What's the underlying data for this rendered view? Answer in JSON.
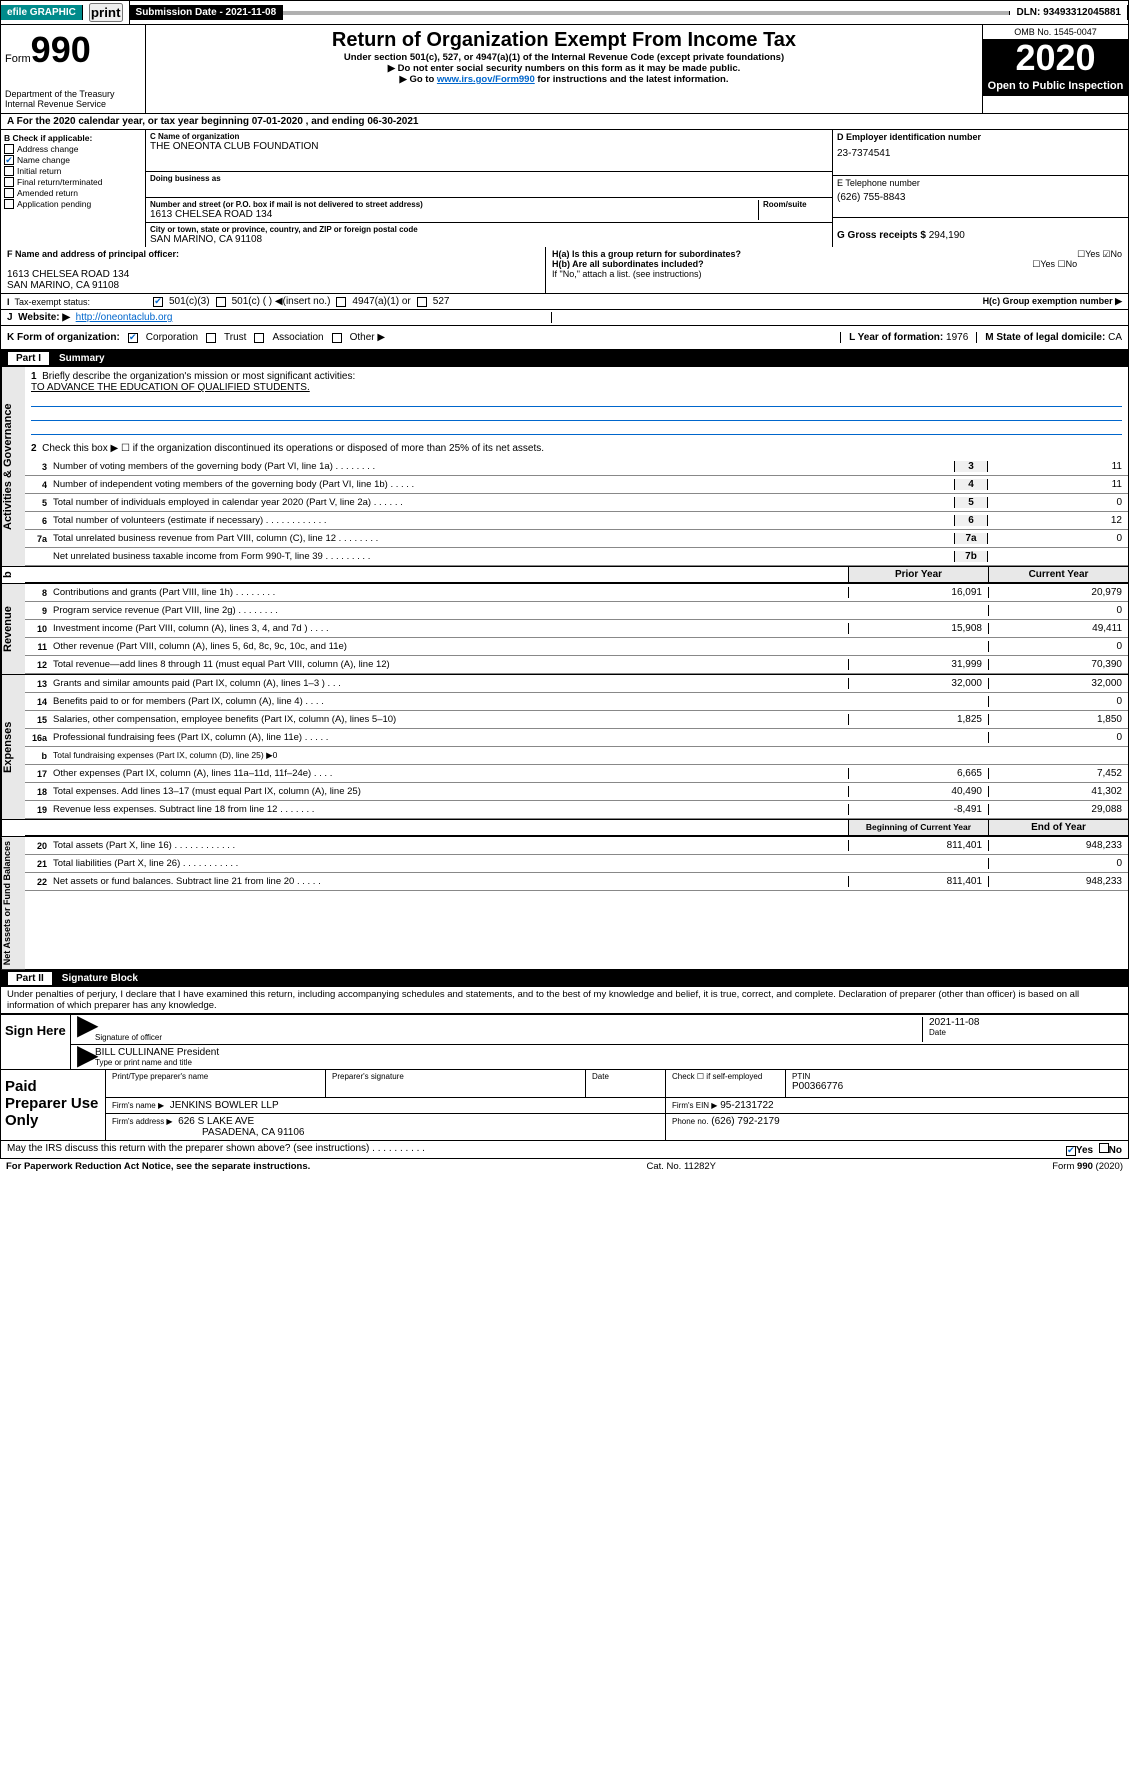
{
  "topbar": {
    "efile": "efile GRAPHIC",
    "print": "print",
    "submission": "Submission Date - 2021-11-08",
    "dln": "DLN: 93493312045881"
  },
  "header": {
    "form_label": "Form",
    "form_num": "990",
    "dept": "Department of the Treasury\nInternal Revenue Service",
    "title": "Return of Organization Exempt From Income Tax",
    "sub1": "Under section 501(c), 527, or 4947(a)(1) of the Internal Revenue Code (except private foundations)",
    "sub2": "▶ Do not enter social security numbers on this form as it may be made public.",
    "sub3_pre": "▶ Go to ",
    "sub3_link": "www.irs.gov/Form990",
    "sub3_post": " for instructions and the latest information.",
    "omb": "OMB No. 1545-0047",
    "year": "2020",
    "open": "Open to Public Inspection"
  },
  "taxyear": "A For the 2020 calendar year, or tax year beginning 07-01-2020    , and ending 06-30-2021",
  "boxB": {
    "label": "B Check if applicable:",
    "items": [
      "Address change",
      "Name change",
      "Initial return",
      "Final return/terminated",
      "Amended return",
      "Application pending"
    ],
    "checked_idx": 1
  },
  "boxC": {
    "name_label": "C Name of organization",
    "name": "THE ONEONTA CLUB FOUNDATION",
    "dba_label": "Doing business as",
    "addr_label": "Number and street (or P.O. box if mail is not delivered to street address)",
    "room_label": "Room/suite",
    "addr": "1613 CHELSEA ROAD 134",
    "city_label": "City or town, state or province, country, and ZIP or foreign postal code",
    "city": "SAN MARINO, CA  91108"
  },
  "boxD": {
    "label": "D Employer identification number",
    "val": "23-7374541"
  },
  "boxE": {
    "label": "E Telephone number",
    "val": "(626) 755-8843"
  },
  "boxG": {
    "label": "G Gross receipts $",
    "val": "294,190"
  },
  "boxF": {
    "label": "F  Name and address of principal officer:",
    "addr1": "1613 CHELSEA ROAD 134",
    "addr2": "SAN MARINO, CA  91108"
  },
  "boxH": {
    "ha": "H(a)  Is this a group return for subordinates?",
    "hb": "H(b)  Are all subordinates included?",
    "hb_note": "If \"No,\" attach a list. (see instructions)",
    "hc": "H(c)  Group exemption number ▶",
    "yes": "Yes",
    "no": "No"
  },
  "boxI": {
    "label": "Tax-exempt status:",
    "opts": [
      "501(c)(3)",
      "501(c) (  ) ◀(insert no.)",
      "4947(a)(1) or",
      "527"
    ]
  },
  "boxJ": {
    "label": "J",
    "text": "Website: ▶",
    "val": "http://oneontaclub.org"
  },
  "boxK": {
    "label": "K Form of organization:",
    "opts": [
      "Corporation",
      "Trust",
      "Association",
      "Other ▶"
    ]
  },
  "boxL": {
    "label": "L Year of formation:",
    "val": "1976"
  },
  "boxM": {
    "label": "M State of legal domicile:",
    "val": "CA"
  },
  "part1": {
    "tag": "Part I",
    "title": "Summary"
  },
  "governance": {
    "side": "Activities & Governance",
    "l1": "Briefly describe the organization's mission or most significant activities:",
    "l1val": "TO ADVANCE THE EDUCATION OF QUALIFIED STUDENTS.",
    "l2": "Check this box ▶ ☐  if the organization discontinued its operations or disposed of more than 25% of its net assets.",
    "rows": [
      {
        "n": "3",
        "t": "Number of voting members of the governing body (Part VI, line 1a)   .    .    .    .    .    .    .    .",
        "lbl": "3",
        "v": "11"
      },
      {
        "n": "4",
        "t": "Number of independent voting members of the governing body (Part VI, line 1b)   .    .    .    .    .",
        "lbl": "4",
        "v": "11"
      },
      {
        "n": "5",
        "t": "Total number of individuals employed in calendar year 2020 (Part V, line 2a)   .    .    .    .    .    .",
        "lbl": "5",
        "v": "0"
      },
      {
        "n": "6",
        "t": "Total number of volunteers (estimate if necessary)   .    .    .    .    .    .    .    .    .    .    .    .",
        "lbl": "6",
        "v": "12"
      },
      {
        "n": "7a",
        "t": "Total unrelated business revenue from Part VIII, column (C), line 12   .    .    .    .    .    .    .    .",
        "lbl": "7a",
        "v": "0"
      },
      {
        "n": "",
        "t": "Net unrelated business taxable income from Form 990-T, line 39   .    .    .    .    .    .    .    .    .",
        "lbl": "7b",
        "v": ""
      }
    ]
  },
  "twocol_head": {
    "prior": "Prior Year",
    "current": "Current Year"
  },
  "revenue": {
    "side": "Revenue",
    "rows": [
      {
        "n": "8",
        "t": "Contributions and grants (Part VIII, line 1h)   .    .    .    .    .    .    .    .",
        "p": "16,091",
        "c": "20,979"
      },
      {
        "n": "9",
        "t": "Program service revenue (Part VIII, line 2g)   .    .    .    .    .    .    .    .",
        "p": "",
        "c": "0"
      },
      {
        "n": "10",
        "t": "Investment income (Part VIII, column (A), lines 3, 4, and 7d )   .    .    .    .",
        "p": "15,908",
        "c": "49,411"
      },
      {
        "n": "11",
        "t": "Other revenue (Part VIII, column (A), lines 5, 6d, 8c, 9c, 10c, and 11e)",
        "p": "",
        "c": "0"
      },
      {
        "n": "12",
        "t": "Total revenue—add lines 8 through 11 (must equal Part VIII, column (A), line 12)",
        "p": "31,999",
        "c": "70,390"
      }
    ]
  },
  "expenses": {
    "side": "Expenses",
    "rows": [
      {
        "n": "13",
        "t": "Grants and similar amounts paid (Part IX, column (A), lines 1–3 )   .    .    .",
        "p": "32,000",
        "c": "32,000"
      },
      {
        "n": "14",
        "t": "Benefits paid to or for members (Part IX, column (A), line 4)   .    .    .    .",
        "p": "",
        "c": "0"
      },
      {
        "n": "15",
        "t": "Salaries, other compensation, employee benefits (Part IX, column (A), lines 5–10)",
        "p": "1,825",
        "c": "1,850"
      },
      {
        "n": "16a",
        "t": "Professional fundraising fees (Part IX, column (A), line 11e)   .    .    .    .    .",
        "p": "",
        "c": "0"
      },
      {
        "n": "b",
        "t": "Total fundraising expenses (Part IX, column (D), line 25) ▶0",
        "p": null,
        "c": null
      },
      {
        "n": "17",
        "t": "Other expenses (Part IX, column (A), lines 11a–11d, 11f–24e)   .    .    .    .",
        "p": "6,665",
        "c": "7,452"
      },
      {
        "n": "18",
        "t": "Total expenses. Add lines 13–17 (must equal Part IX, column (A), line 25)",
        "p": "40,490",
        "c": "41,302"
      },
      {
        "n": "19",
        "t": "Revenue less expenses. Subtract line 18 from line 12   .    .    .    .    .    .    .",
        "p": "-8,491",
        "c": "29,088"
      }
    ]
  },
  "netassets_head": {
    "begin": "Beginning of Current Year",
    "end": "End of Year"
  },
  "netassets": {
    "side": "Net Assets or Fund Balances",
    "rows": [
      {
        "n": "20",
        "t": "Total assets (Part X, line 16)   .    .    .    .    .    .    .    .    .    .    .    .",
        "p": "811,401",
        "c": "948,233"
      },
      {
        "n": "21",
        "t": "Total liabilities (Part X, line 26)   .    .    .    .    .    .    .    .    .    .    .",
        "p": "",
        "c": "0"
      },
      {
        "n": "22",
        "t": "Net assets or fund balances. Subtract line 21 from line 20   .    .    .    .    .",
        "p": "811,401",
        "c": "948,233"
      }
    ]
  },
  "part2": {
    "tag": "Part II",
    "title": "Signature Block"
  },
  "perjury": "Under penalties of perjury, I declare that I have examined this return, including accompanying schedules and statements, and to the best of my knowledge and belief, it is true, correct, and complete. Declaration of preparer (other than officer) is based on all information of which preparer has any knowledge.",
  "sign": {
    "here": "Sign Here",
    "sig_label": "Signature of officer",
    "date_label": "Date",
    "date": "2021-11-08",
    "name": "BILL CULLINANE President",
    "name_label": "Type or print name and title"
  },
  "paid": {
    "label": "Paid Preparer Use Only",
    "h1": "Print/Type preparer's name",
    "h2": "Preparer's signature",
    "h3": "Date",
    "h4": "Check ☐ if self-employed",
    "h5": "PTIN",
    "ptin": "P00366776",
    "firm_label": "Firm's name    ▶",
    "firm": "JENKINS BOWLER LLP",
    "ein_label": "Firm's EIN ▶",
    "ein": "95-2131722",
    "addr_label": "Firm's address ▶",
    "addr1": "626 S LAKE AVE",
    "addr2": "PASADENA, CA  91106",
    "phone_label": "Phone no.",
    "phone": "(626) 792-2179"
  },
  "discuss": "May the IRS discuss this return with the preparer shown above? (see instructions)    .    .    .    .    .    .    .    .    .    .",
  "footer": {
    "pra": "For Paperwork Reduction Act Notice, see the separate instructions.",
    "cat": "Cat. No. 11282Y",
    "form": "Form 990 (2020)"
  }
}
